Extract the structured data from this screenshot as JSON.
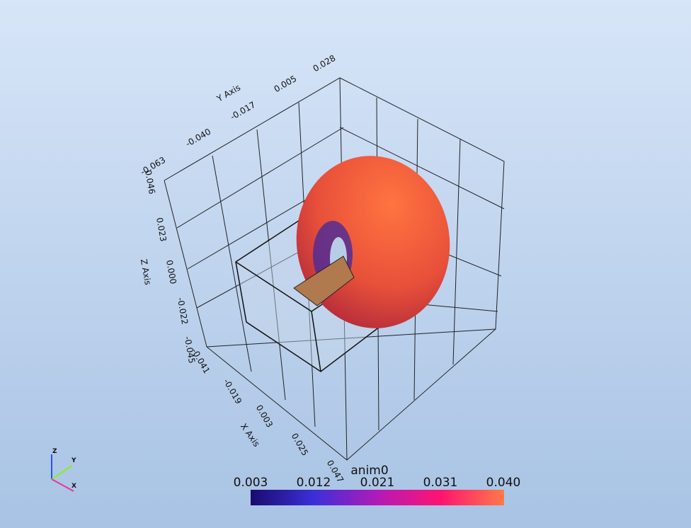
{
  "axes": {
    "y": {
      "title": "Y Axis",
      "ticks": [
        "-0.063",
        "-0.040",
        "-0.017",
        "0.005",
        "0.028"
      ]
    },
    "z": {
      "title": "Z Axis",
      "ticks": [
        "0.046",
        "0.023",
        "0.000",
        "-0.022",
        "-0.045"
      ]
    },
    "x": {
      "title": "X Axis",
      "ticks": [
        "-0.041",
        "-0.019",
        "0.003",
        "0.025",
        "0.047"
      ]
    }
  },
  "colorbar": {
    "title": "anim0",
    "ticks": [
      "0.003",
      "0.012",
      "0.021",
      "0.031",
      "0.040"
    ]
  },
  "orientation": {
    "labels": [
      "Z",
      "Y",
      "X"
    ]
  }
}
